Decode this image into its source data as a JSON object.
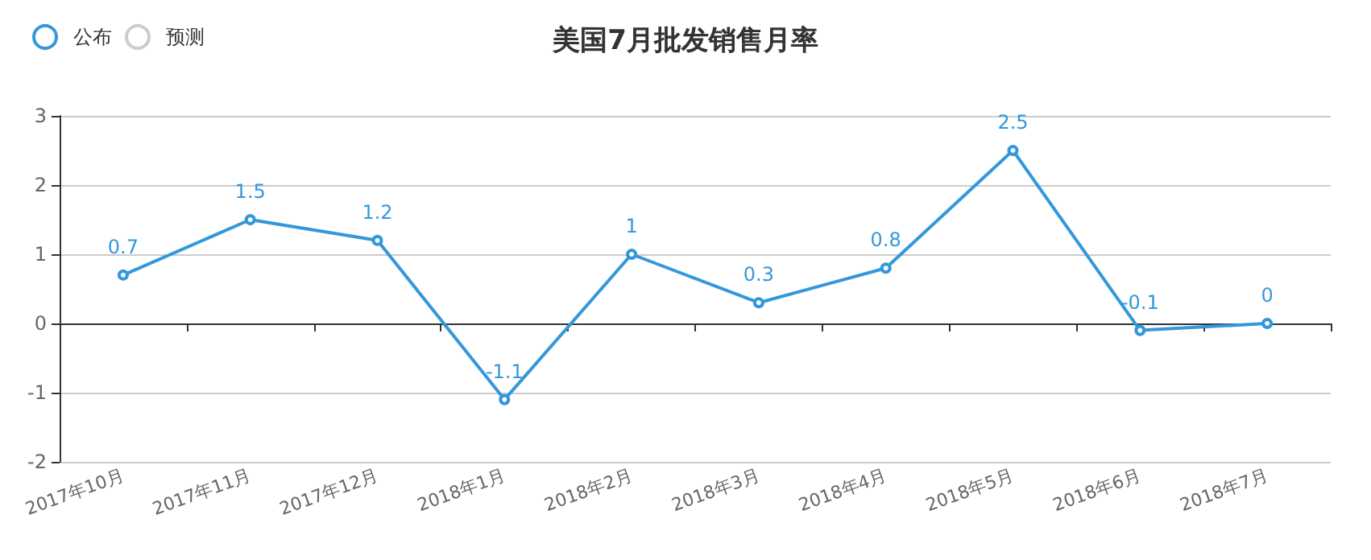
{
  "chart_data": {
    "type": "line",
    "title": "美国7月批发销售月率",
    "categories": [
      "2017年10月",
      "2017年11月",
      "2017年12月",
      "2018年1月",
      "2018年2月",
      "2018年3月",
      "2018年4月",
      "2018年5月",
      "2018年6月",
      "2018年7月"
    ],
    "series": [
      {
        "name": "公布",
        "color": "#3398db",
        "values": [
          0.7,
          1.5,
          1.2,
          -1.1,
          1,
          0.3,
          0.8,
          2.5,
          -0.1,
          0
        ]
      },
      {
        "name": "预测",
        "color": "#cccccc",
        "values": [
          null,
          null,
          null,
          null,
          null,
          null,
          null,
          null,
          null,
          null
        ]
      }
    ],
    "ylim": [
      -2,
      3
    ],
    "yticks": [
      -2,
      -1,
      0,
      1,
      2,
      3
    ],
    "grid": "y",
    "legend": "top left",
    "marker": "circle",
    "data_labels": true
  }
}
